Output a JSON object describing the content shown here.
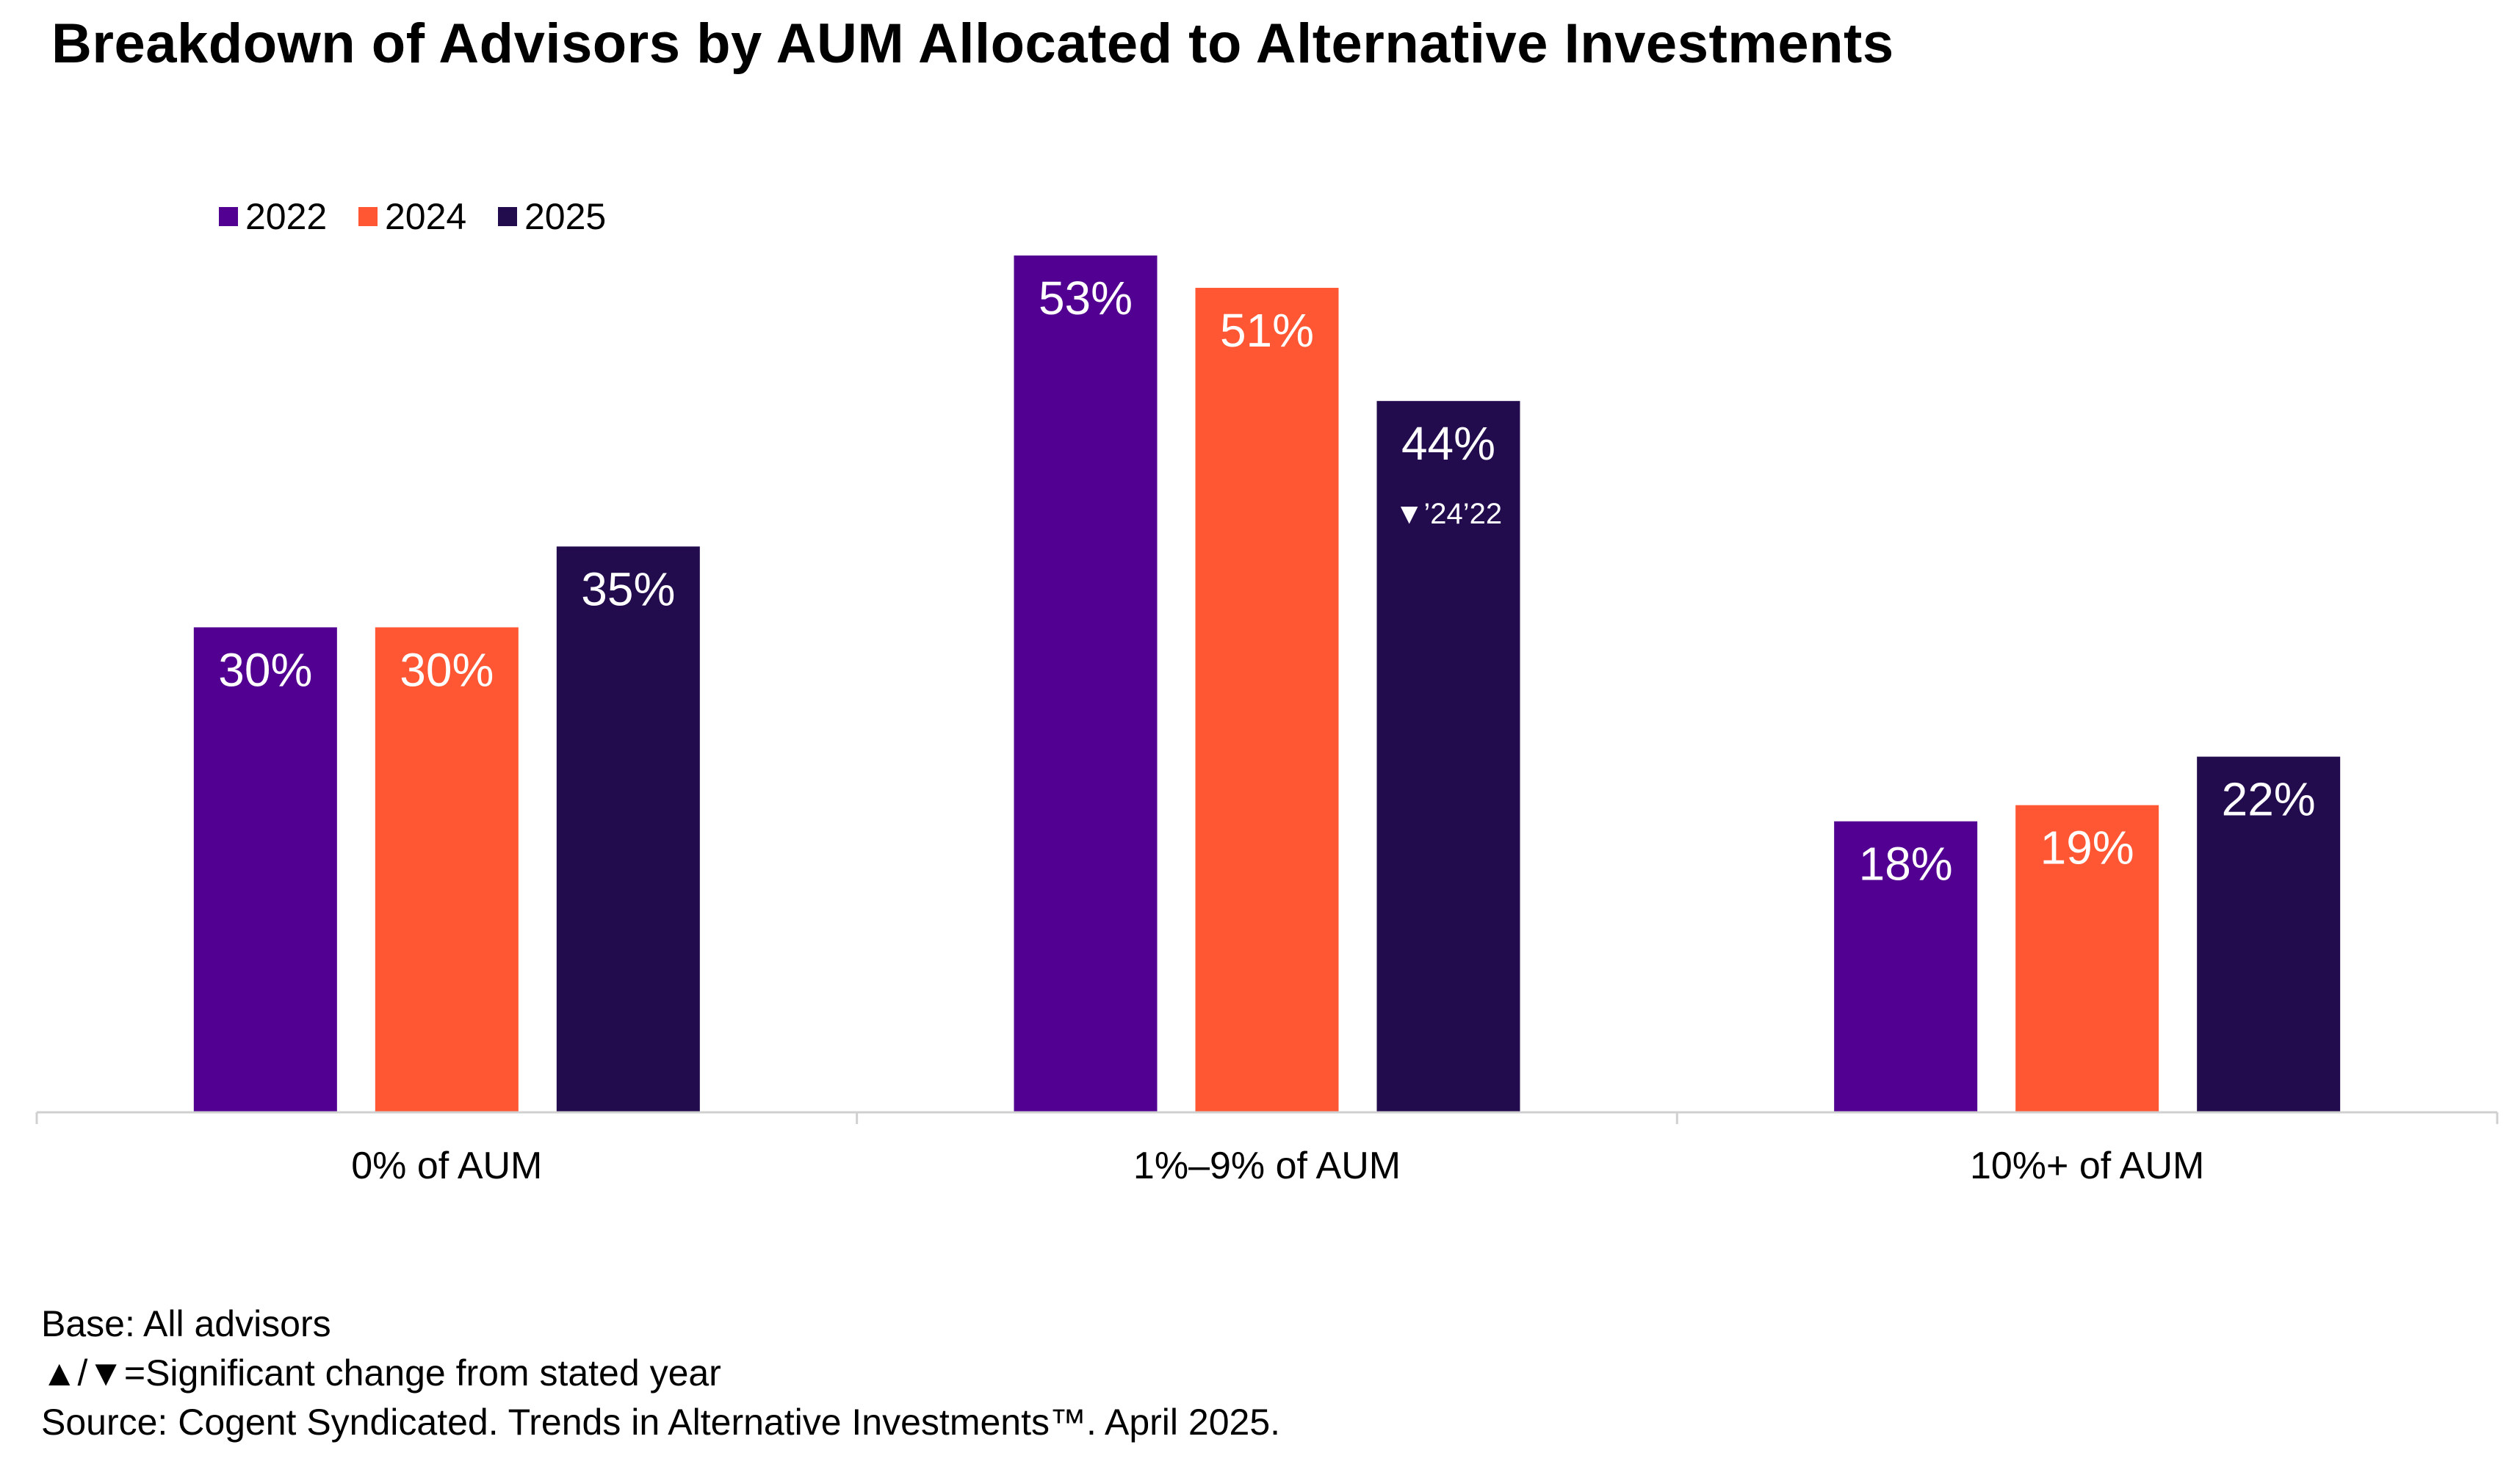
{
  "chart_data": {
    "type": "bar",
    "title": "Breakdown of Advisors by AUM Allocated to Alternative Investments",
    "categories": [
      "0% of AUM",
      "1%–9% of AUM",
      "10%+ of AUM"
    ],
    "series": [
      {
        "name": "2022",
        "color": "#520092",
        "values": [
          30,
          53,
          18
        ]
      },
      {
        "name": "2024",
        "color": "#FF5733",
        "values": [
          30,
          51,
          19
        ]
      },
      {
        "name": "2025",
        "color": "#220C4E",
        "values": [
          35,
          44,
          22
        ]
      }
    ],
    "value_suffix": "%",
    "ylim": [
      0,
      53
    ],
    "legend_position": "top-left",
    "grid": false,
    "annotations": [
      {
        "category_index": 1,
        "series_index": 2,
        "text": "▼’24’22"
      }
    ]
  },
  "footnotes": {
    "base": "Base: All advisors",
    "significance": "▲/▼=Significant change from stated year",
    "source": "Source: Cogent Syndicated. Trends in Alternative Investments™. April 2025."
  }
}
